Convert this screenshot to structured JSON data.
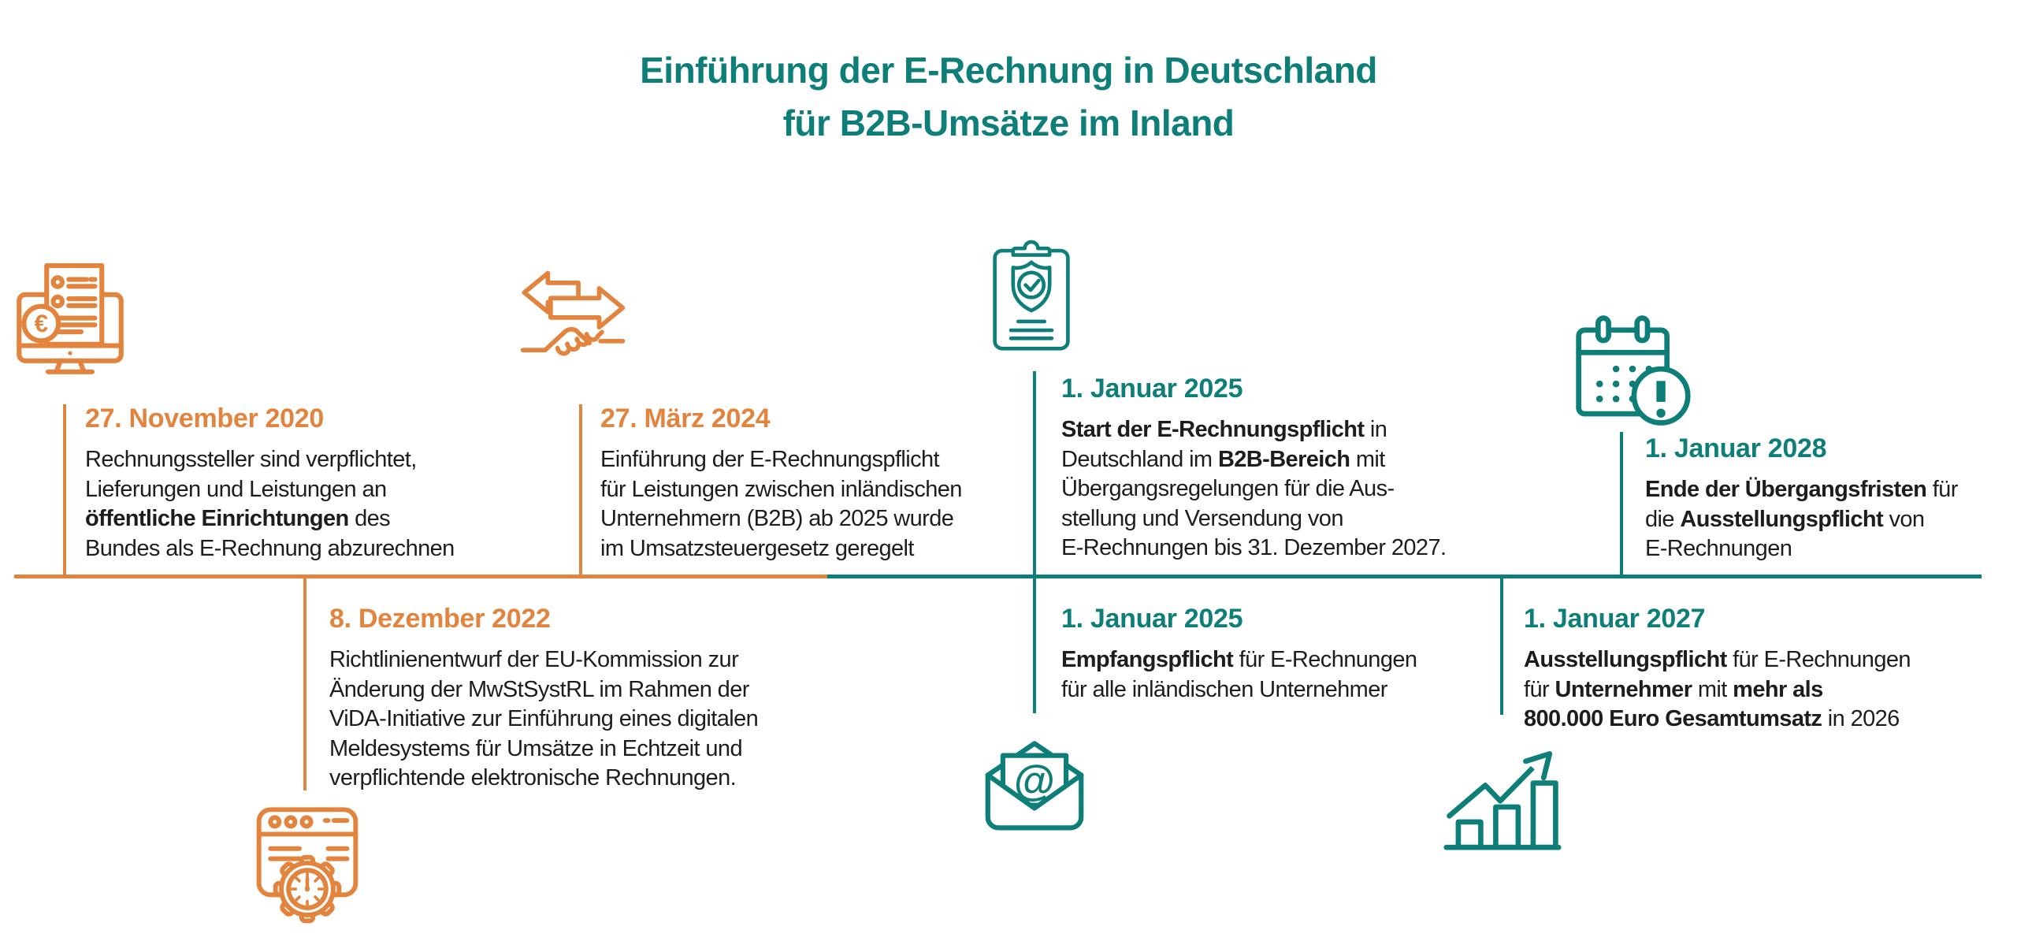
{
  "colors": {
    "orange": "#E2843E",
    "teal": "#0E7F78",
    "text": "#1D1D1B",
    "background": "#FFFFFF"
  },
  "title": {
    "line1": "Einführung der E-Rechnung in Deutschland",
    "line2": "für B2B-Umsätze im Inland"
  },
  "timeline": {
    "orientation": "horizontal",
    "left_segment_color": "orange",
    "right_segment_color": "teal"
  },
  "milestones": [
    {
      "date": "27. November 2020",
      "color": "orange",
      "icon": "invoice-monitor-icon",
      "position": "above-line",
      "body": [
        [
          {
            "t": "Rechnungssteller sind verpflichtet,",
            "b": false
          }
        ],
        [
          {
            "t": "Lieferungen und Leistungen an",
            "b": false
          }
        ],
        [
          {
            "t": "öffentliche Einrichtungen",
            "b": true
          },
          {
            "t": " des",
            "b": false
          }
        ],
        [
          {
            "t": "Bundes als E-Rechnung abzurechnen",
            "b": false
          }
        ]
      ]
    },
    {
      "date": "27. März 2024",
      "color": "orange",
      "icon": "exchange-handshake-icon",
      "position": "above-line",
      "body": [
        [
          {
            "t": "Einführung der E-Rechnungspflicht",
            "b": false
          }
        ],
        [
          {
            "t": "für Leistungen zwischen inländischen",
            "b": false
          }
        ],
        [
          {
            "t": "Unternehmern (B2B) ab 2025 wurde",
            "b": false
          }
        ],
        [
          {
            "t": "im Umsatzsteuergesetz geregelt",
            "b": false
          }
        ]
      ]
    },
    {
      "date": "8. Dezember 2022",
      "color": "orange",
      "icon": "browser-settings-icon",
      "position": "below-line",
      "body": [
        [
          {
            "t": "Richtlinienentwurf der EU-Kommission zur",
            "b": false
          }
        ],
        [
          {
            "t": "Änderung der MwStSystRL im Rahmen der",
            "b": false
          }
        ],
        [
          {
            "t": "ViDA-Initiative zur Einführung eines digitalen",
            "b": false
          }
        ],
        [
          {
            "t": "Meldesystems für Umsätze in Echtzeit und",
            "b": false
          }
        ],
        [
          {
            "t": "verpflichtende elektronische Rechnungen.",
            "b": false
          }
        ]
      ]
    },
    {
      "date": "1. Januar 2025",
      "color": "teal",
      "icon": "clipboard-shield-icon",
      "position": "above-line",
      "body": [
        [
          {
            "t": "Start der E-Rechnungspflicht",
            "b": true
          },
          {
            "t": " in",
            "b": false
          }
        ],
        [
          {
            "t": "Deutschland im ",
            "b": false
          },
          {
            "t": "B2B-Bereich",
            "b": true
          },
          {
            "t": " mit",
            "b": false
          }
        ],
        [
          {
            "t": "Übergangsregelungen für die Aus-",
            "b": false
          }
        ],
        [
          {
            "t": "stellung und Versendung von",
            "b": false
          }
        ],
        [
          {
            "t": "E-Rechnungen bis 31. Dezember 2027.",
            "b": false
          }
        ]
      ]
    },
    {
      "date": "1. Januar 2025",
      "color": "teal",
      "icon": "email-envelope-icon",
      "position": "below-line",
      "body": [
        [
          {
            "t": "Empfangspflicht",
            "b": true
          },
          {
            "t": " für E-Rechnungen",
            "b": false
          }
        ],
        [
          {
            "t": "für alle inländischen Unternehmer",
            "b": false
          }
        ]
      ]
    },
    {
      "date": "1. Januar 2027",
      "color": "teal",
      "icon": "growth-chart-icon",
      "position": "below-line",
      "body": [
        [
          {
            "t": "Ausstellungspflicht",
            "b": true
          },
          {
            "t": " für E-Rechnungen",
            "b": false
          }
        ],
        [
          {
            "t": "für ",
            "b": false
          },
          {
            "t": "Unternehmer",
            "b": true
          },
          {
            "t": " mit ",
            "b": false
          },
          {
            "t": "mehr als",
            "b": true
          }
        ],
        [
          {
            "t": "800.000 Euro Gesamtumsatz",
            "b": true
          },
          {
            "t": " in 2026",
            "b": false
          }
        ]
      ]
    },
    {
      "date": "1. Januar 2028",
      "color": "teal",
      "icon": "calendar-alert-icon",
      "position": "above-line",
      "body": [
        [
          {
            "t": "Ende der Übergangsfristen",
            "b": true
          },
          {
            "t": " für",
            "b": false
          }
        ],
        [
          {
            "t": "die ",
            "b": false
          },
          {
            "t": "Ausstellungspflicht",
            "b": true
          },
          {
            "t": " von",
            "b": false
          }
        ],
        [
          {
            "t": "E-Rechnungen",
            "b": false
          }
        ]
      ]
    }
  ]
}
